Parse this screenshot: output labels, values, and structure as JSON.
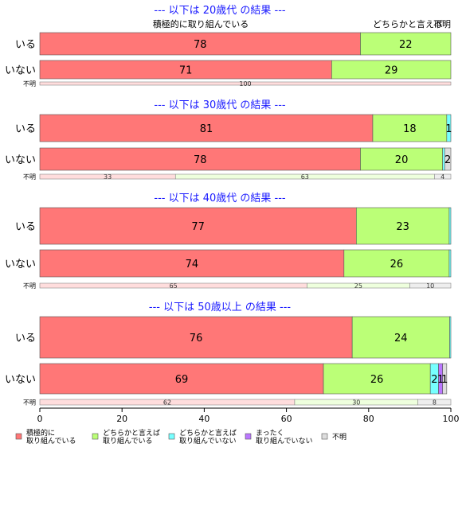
{
  "chart_data": {
    "type": "bar",
    "orientation": "horizontal-stacked",
    "categories": [
      "積極的に\n取り組んでいる",
      "どちらかと言えば\n取り組んでいる",
      "どちらかと言えば\n取り組んでいない",
      "まったく\n取り組んでいない",
      "不明"
    ],
    "colors": [
      "#ff7777",
      "#bbff77",
      "#77ffff",
      "#bb77ff",
      "#dddddd"
    ],
    "colors_light": [
      "#ffdddd",
      "#eeffdd",
      "#ddffff",
      "#eeddff",
      "#eeeeee"
    ],
    "column_headers": [
      "積極的に取り組んでいる",
      "どちらかと言えば",
      "不明"
    ],
    "xlim": [
      0,
      100
    ],
    "xticks": [
      0,
      20,
      40,
      60,
      80,
      100
    ],
    "panels": [
      {
        "title": "--- 以下は 20歳代 の結果 ---",
        "rows": [
          {
            "label": "いる",
            "values": [
              78,
              22,
              0,
              0,
              0
            ],
            "labels": [
              "78",
              "22",
              "",
              "",
              ""
            ]
          },
          {
            "label": "いない",
            "values": [
              71,
              29,
              0,
              0,
              0
            ],
            "labels": [
              "71",
              "29",
              "",
              "",
              ""
            ]
          },
          {
            "label": "不明",
            "values": [
              100,
              0,
              0,
              0,
              0
            ],
            "labels": [
              "100",
              "",
              "",
              "",
              ""
            ],
            "small": true
          }
        ]
      },
      {
        "title": "--- 以下は 30歳代 の結果 ---",
        "rows": [
          {
            "label": "いる",
            "values": [
              81,
              18,
              1,
              0,
              0
            ],
            "labels": [
              "81",
              "18",
              "1",
              "",
              ""
            ]
          },
          {
            "label": "いない",
            "values": [
              78,
              20,
              0.5,
              0,
              1.5
            ],
            "labels": [
              "78",
              "20",
              "",
              "",
              "2"
            ]
          },
          {
            "label": "不明",
            "values": [
              33,
              63,
              0,
              0,
              4
            ],
            "labels": [
              "33",
              "63",
              "",
              "",
              "4"
            ],
            "small": true
          }
        ]
      },
      {
        "title": "--- 以下は 40歳代 の結果 ---",
        "rows": [
          {
            "label": "いる",
            "values": [
              77,
              22.6,
              0.4,
              0,
              0
            ],
            "labels": [
              "77",
              "23",
              "",
              "",
              ""
            ]
          },
          {
            "label": "いない",
            "values": [
              74,
              25.6,
              0.4,
              0,
              0
            ],
            "labels": [
              "74",
              "26",
              "",
              "",
              ""
            ]
          },
          {
            "label": "不明",
            "values": [
              65,
              25,
              0,
              0,
              10
            ],
            "labels": [
              "65",
              "25",
              "",
              "",
              "10"
            ],
            "small": true
          }
        ]
      },
      {
        "title": "--- 以下は 50歳以上 の結果 ---",
        "rows": [
          {
            "label": "いる",
            "values": [
              76,
              23.7,
              0.3,
              0,
              0
            ],
            "labels": [
              "76",
              "24",
              "",
              "",
              ""
            ]
          },
          {
            "label": "いない",
            "values": [
              69,
              26,
              2,
              1,
              1
            ],
            "labels": [
              "69",
              "26",
              "2",
              "1",
              "1"
            ]
          },
          {
            "label": "不明",
            "values": [
              62,
              30,
              0,
              0,
              8
            ],
            "labels": [
              "62",
              "30",
              "",
              "",
              "8"
            ],
            "small": true
          }
        ]
      }
    ]
  }
}
